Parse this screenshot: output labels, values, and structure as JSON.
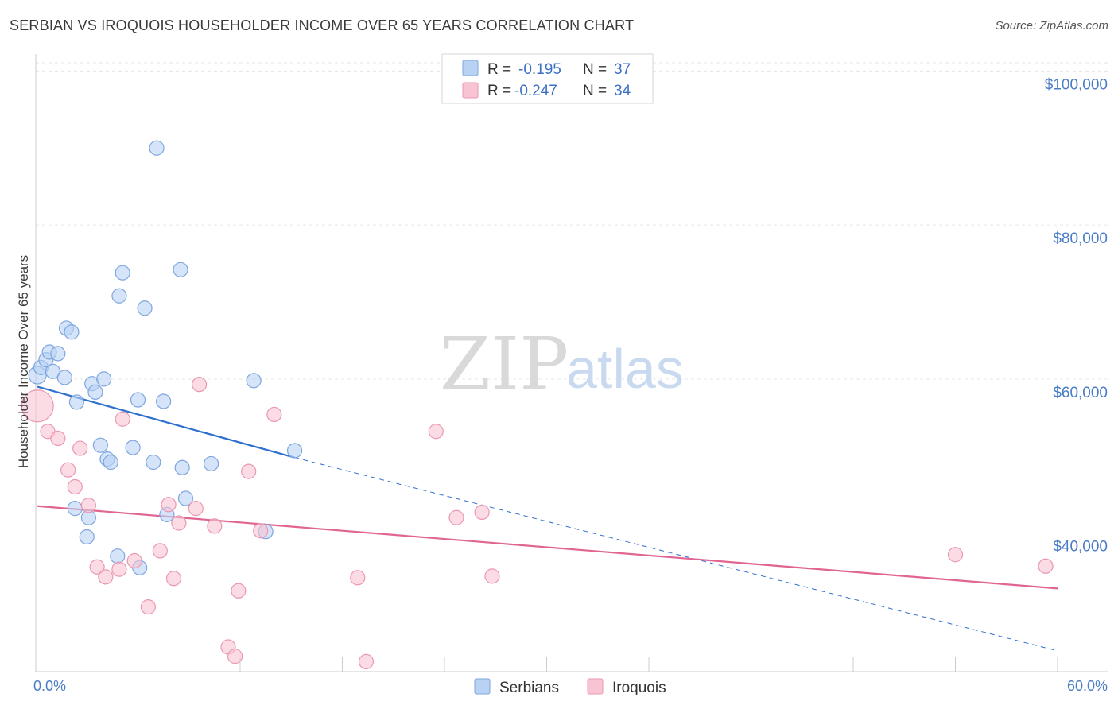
{
  "header": {
    "title": "SERBIAN VS IROQUOIS HOUSEHOLDER INCOME OVER 65 YEARS CORRELATION CHART",
    "source": "Source: ZipAtlas.com"
  },
  "watermark": {
    "zip": "ZIP",
    "atlas": "atlas"
  },
  "colors": {
    "serbians_fill": "#b9d2f3",
    "serbians_stroke": "#7ea6df",
    "serbians_line": "#2f6fce",
    "iroquois_fill": "#f8c4d4",
    "iroquois_stroke": "#eb97b2",
    "iroquois_line": "#e06592",
    "tick_label": "#4a7cc7",
    "grid": "#e6e6e6"
  },
  "legend": {
    "rows": [
      {
        "r_label": "R =",
        "r_value": "-0.195",
        "n_label": "N =",
        "n_value": "37"
      },
      {
        "r_label": "R =",
        "r_value": "-0.247",
        "n_label": "N =",
        "n_value": "34"
      }
    ]
  },
  "bottom_legend": [
    "Serbians",
    "Iroquois"
  ],
  "chart_data": {
    "type": "scatter",
    "title": "SERBIAN VS IROQUOIS HOUSEHOLDER INCOME OVER 65 YEARS CORRELATION CHART",
    "xlabel": "",
    "ylabel": "Householder Income Over 65 years",
    "xlim": [
      0,
      60
    ],
    "ylim": [
      22000,
      102000
    ],
    "x_tick_labels": [
      "0.0%",
      "60.0%"
    ],
    "y_ticks": [
      40000,
      60000,
      80000,
      100000
    ],
    "y_tick_labels": [
      "$40,000",
      "$60,000",
      "$80,000",
      "$100,000"
    ],
    "grid": true,
    "legend_position": "top-center",
    "series": [
      {
        "name": "Serbians",
        "R": -0.195,
        "N": 37,
        "trend": {
          "x0": 0.1,
          "y0": 59000,
          "x1": 15.2,
          "y1": 49800,
          "dashed_to_x": 60,
          "dashed_to_y": 24700
        },
        "points": [
          {
            "x": 0.1,
            "y": 60500
          },
          {
            "x": 0.3,
            "y": 61500
          },
          {
            "x": 0.6,
            "y": 62500
          },
          {
            "x": 0.8,
            "y": 63500
          },
          {
            "x": 1.0,
            "y": 61000
          },
          {
            "x": 1.3,
            "y": 63300
          },
          {
            "x": 1.7,
            "y": 60200
          },
          {
            "x": 1.8,
            "y": 66600
          },
          {
            "x": 2.1,
            "y": 66100
          },
          {
            "x": 2.4,
            "y": 57000
          },
          {
            "x": 3.3,
            "y": 59400
          },
          {
            "x": 3.5,
            "y": 58300
          },
          {
            "x": 3.8,
            "y": 51400
          },
          {
            "x": 4.0,
            "y": 60000
          },
          {
            "x": 4.2,
            "y": 49600
          },
          {
            "x": 4.4,
            "y": 49200
          },
          {
            "x": 4.9,
            "y": 70800
          },
          {
            "x": 5.1,
            "y": 73800
          },
          {
            "x": 5.7,
            "y": 51100
          },
          {
            "x": 6.1,
            "y": 35500
          },
          {
            "x": 6.0,
            "y": 57300
          },
          {
            "x": 6.4,
            "y": 69200
          },
          {
            "x": 6.9,
            "y": 49200
          },
          {
            "x": 7.1,
            "y": 90000
          },
          {
            "x": 7.5,
            "y": 57100
          },
          {
            "x": 7.7,
            "y": 42400
          },
          {
            "x": 8.5,
            "y": 74200
          },
          {
            "x": 8.6,
            "y": 48500
          },
          {
            "x": 8.8,
            "y": 44500
          },
          {
            "x": 10.3,
            "y": 49000
          },
          {
            "x": 12.8,
            "y": 59800
          },
          {
            "x": 13.5,
            "y": 40200
          },
          {
            "x": 15.2,
            "y": 50700
          },
          {
            "x": 2.3,
            "y": 43200
          },
          {
            "x": 3.0,
            "y": 39500
          },
          {
            "x": 3.1,
            "y": 42000
          },
          {
            "x": 4.8,
            "y": 37000
          }
        ]
      },
      {
        "name": "Iroquois",
        "R": -0.247,
        "N": 34,
        "trend": {
          "x0": 0.1,
          "y0": 43500,
          "x1": 60,
          "y1": 32800
        },
        "points": [
          {
            "x": 0.1,
            "y": 56500
          },
          {
            "x": 0.7,
            "y": 53200
          },
          {
            "x": 1.3,
            "y": 52300
          },
          {
            "x": 1.9,
            "y": 48200
          },
          {
            "x": 2.3,
            "y": 46000
          },
          {
            "x": 2.6,
            "y": 51000
          },
          {
            "x": 3.1,
            "y": 43600
          },
          {
            "x": 3.6,
            "y": 35600
          },
          {
            "x": 4.1,
            "y": 34300
          },
          {
            "x": 4.9,
            "y": 35300
          },
          {
            "x": 5.1,
            "y": 54800
          },
          {
            "x": 5.8,
            "y": 36400
          },
          {
            "x": 6.6,
            "y": 30400
          },
          {
            "x": 7.3,
            "y": 37700
          },
          {
            "x": 7.8,
            "y": 43700
          },
          {
            "x": 8.1,
            "y": 34100
          },
          {
            "x": 8.4,
            "y": 41300
          },
          {
            "x": 9.4,
            "y": 43200
          },
          {
            "x": 9.6,
            "y": 59300
          },
          {
            "x": 10.5,
            "y": 40900
          },
          {
            "x": 11.3,
            "y": 25200
          },
          {
            "x": 11.7,
            "y": 24000
          },
          {
            "x": 11.9,
            "y": 32500
          },
          {
            "x": 12.5,
            "y": 48000
          },
          {
            "x": 13.2,
            "y": 40300
          },
          {
            "x": 14.0,
            "y": 55400
          },
          {
            "x": 18.9,
            "y": 34200
          },
          {
            "x": 19.4,
            "y": 23300
          },
          {
            "x": 23.5,
            "y": 53200
          },
          {
            "x": 24.7,
            "y": 42000
          },
          {
            "x": 26.2,
            "y": 42700
          },
          {
            "x": 26.8,
            "y": 34400
          },
          {
            "x": 54.0,
            "y": 37200
          },
          {
            "x": 59.3,
            "y": 35700
          }
        ]
      }
    ]
  }
}
